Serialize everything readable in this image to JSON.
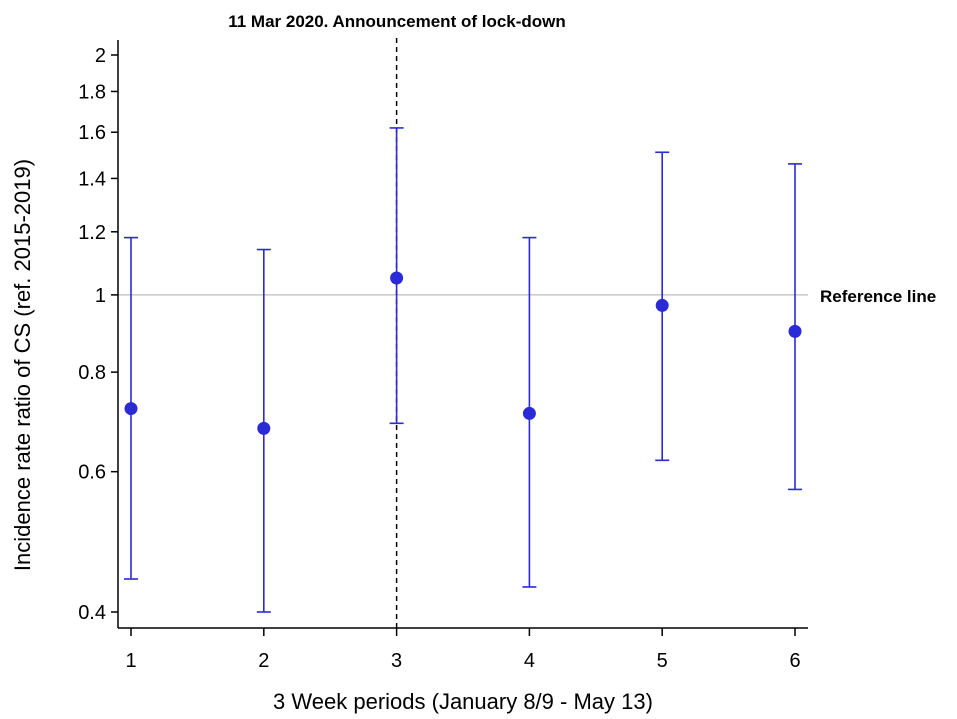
{
  "chart_data": {
    "type": "scatter",
    "subtype": "point-estimate-with-confidence-intervals",
    "y_scale": "log",
    "x": [
      1,
      2,
      3,
      4,
      5,
      6
    ],
    "x_tick_labels": [
      "1",
      "2",
      "3",
      "4",
      "5",
      "6"
    ],
    "xlim": [
      0.93,
      6.1
    ],
    "xlabel": "3 Week periods (January 8/9 - May 13)",
    "ylabel": "Incidence rate ratio of CS (ref. 2015-2019)",
    "ylim": [
      0.39,
      2.05
    ],
    "y_ticks": [
      0.4,
      0.6,
      0.8,
      1,
      1.2,
      1.4,
      1.6,
      1.8,
      2
    ],
    "y_tick_labels": [
      "0.4",
      "0.6",
      "0.8",
      "1",
      "1.2",
      "1.4",
      "1.6",
      "1.8",
      "2"
    ],
    "series": [
      {
        "estimate": [
          0.72,
          0.68,
          1.05,
          0.71,
          0.97,
          0.9
        ],
        "ci_low": [
          0.44,
          0.4,
          0.69,
          0.43,
          0.62,
          0.57
        ],
        "ci_high": [
          1.18,
          1.14,
          1.62,
          1.18,
          1.51,
          1.46
        ]
      }
    ],
    "reference_line": {
      "y": 1,
      "label": "Reference line",
      "color": "#bdbdbd"
    },
    "event_line": {
      "x": 3,
      "label": "11 Mar 2020. Announcement of lock-down",
      "style": "dashed"
    },
    "colors": {
      "series": "#2a2ad6",
      "axis": "#000000"
    },
    "grid": false
  }
}
